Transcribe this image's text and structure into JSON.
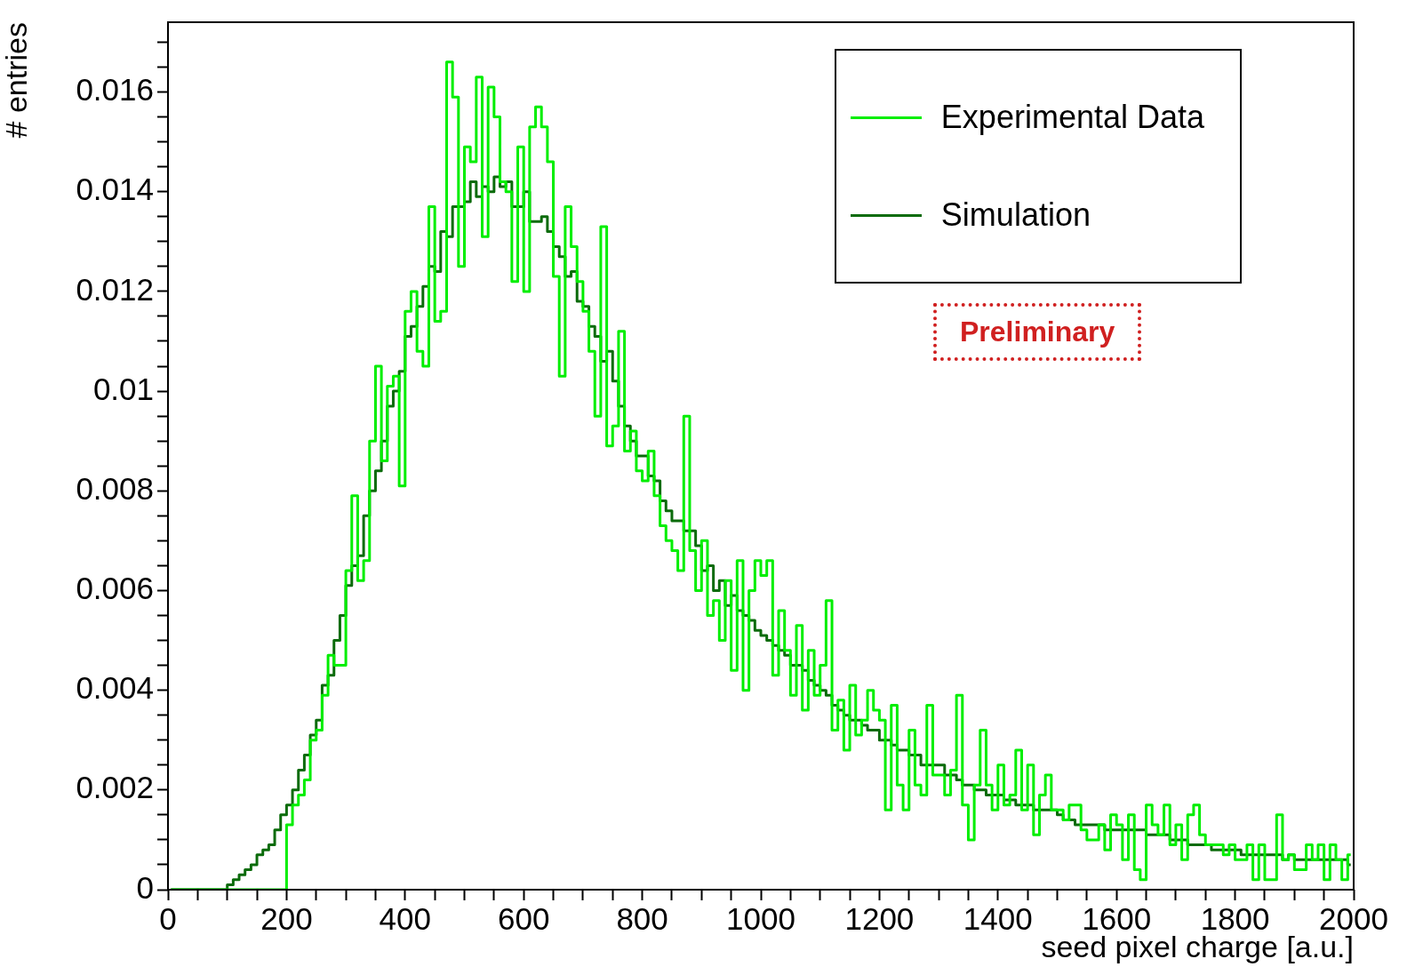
{
  "chart_data": {
    "type": "histogram",
    "xlabel": "seed pixel charge [a.u.]",
    "ylabel": "# entries",
    "annotations": [
      "Preliminary"
    ],
    "legend": "top right",
    "xlim": [
      0,
      2000
    ],
    "ylim": [
      0,
      0.0174
    ],
    "xticks": [
      0,
      {
        "value": 50,
        "label": null
      },
      {
        "value": 100,
        "label": null
      },
      {
        "value": 150,
        "label": null
      },
      200,
      {
        "value": 250,
        "label": null
      },
      {
        "value": 300,
        "label": null
      },
      {
        "value": 350,
        "label": null
      },
      400,
      {
        "value": 450,
        "label": null
      },
      {
        "value": 500,
        "label": null
      },
      {
        "value": 550,
        "label": null
      },
      600,
      {
        "value": 650,
        "label": null
      },
      {
        "value": 700,
        "label": null
      },
      {
        "value": 750,
        "label": null
      },
      800,
      {
        "value": 850,
        "label": null
      },
      {
        "value": 900,
        "label": null
      },
      {
        "value": 950,
        "label": null
      },
      1000,
      {
        "value": 1050,
        "label": null
      },
      {
        "value": 1100,
        "label": null
      },
      {
        "value": 1150,
        "label": null
      },
      1200,
      {
        "value": 1250,
        "label": null
      },
      {
        "value": 1300,
        "label": null
      },
      {
        "value": 1350,
        "label": null
      },
      1400,
      {
        "value": 1450,
        "label": null
      },
      {
        "value": 1500,
        "label": null
      },
      {
        "value": 1550,
        "label": null
      },
      1600,
      {
        "value": 1650,
        "label": null
      },
      {
        "value": 1700,
        "label": null
      },
      {
        "value": 1750,
        "label": null
      },
      1800,
      {
        "value": 1850,
        "label": null
      },
      {
        "value": 1900,
        "label": null
      },
      {
        "value": 1950,
        "label": null
      },
      2000
    ],
    "yticks": [
      0,
      {
        "value": 0.0005,
        "label": null
      },
      {
        "value": 0.001,
        "label": null
      },
      {
        "value": 0.0015,
        "label": null
      },
      0.002,
      {
        "value": 0.0025,
        "label": null
      },
      {
        "value": 0.003,
        "label": null
      },
      {
        "value": 0.0035,
        "label": null
      },
      0.004,
      {
        "value": 0.0045,
        "label": null
      },
      {
        "value": 0.005,
        "label": null
      },
      {
        "value": 0.0055,
        "label": null
      },
      0.006,
      {
        "value": 0.0065,
        "label": null
      },
      {
        "value": 0.007,
        "label": null
      },
      {
        "value": 0.0075,
        "label": null
      },
      0.008,
      {
        "value": 0.0085,
        "label": null
      },
      {
        "value": 0.009,
        "label": null
      },
      {
        "value": 0.0095,
        "label": null
      },
      0.01,
      {
        "value": 0.0105,
        "label": null
      },
      {
        "value": 0.011,
        "label": null
      },
      {
        "value": 0.0115,
        "label": null
      },
      0.012,
      {
        "value": 0.0125,
        "label": null
      },
      {
        "value": 0.013,
        "label": null
      },
      {
        "value": 0.0135,
        "label": null
      },
      0.014,
      {
        "value": 0.0145,
        "label": null
      },
      {
        "value": 0.015,
        "label": null
      },
      {
        "value": 0.0155,
        "label": null
      },
      0.016,
      {
        "value": 0.0165,
        "label": null
      },
      {
        "value": 0.017,
        "label": null
      }
    ],
    "bins": [
      0,
      10,
      20,
      30,
      40,
      50,
      60,
      70,
      80,
      90,
      100,
      110,
      120,
      130,
      140,
      150,
      160,
      170,
      180,
      190,
      200,
      210,
      220,
      230,
      240,
      250,
      260,
      270,
      280,
      290,
      300,
      310,
      320,
      330,
      340,
      350,
      360,
      370,
      380,
      390,
      400,
      410,
      420,
      430,
      440,
      450,
      460,
      470,
      480,
      490,
      500,
      510,
      520,
      530,
      540,
      550,
      560,
      570,
      580,
      590,
      600,
      610,
      620,
      630,
      640,
      650,
      660,
      670,
      680,
      690,
      700,
      710,
      720,
      730,
      740,
      750,
      760,
      770,
      780,
      790,
      800,
      810,
      820,
      830,
      840,
      850,
      860,
      870,
      880,
      890,
      900,
      910,
      920,
      930,
      940,
      950,
      960,
      970,
      980,
      990,
      1000,
      1010,
      1020,
      1030,
      1040,
      1050,
      1060,
      1070,
      1080,
      1090,
      1100,
      1110,
      1120,
      1130,
      1140,
      1150,
      1160,
      1170,
      1180,
      1190,
      1200,
      1210,
      1220,
      1230,
      1240,
      1250,
      1260,
      1270,
      1280,
      1290,
      1300,
      1310,
      1320,
      1330,
      1340,
      1350,
      1360,
      1370,
      1380,
      1390,
      1400,
      1410,
      1420,
      1430,
      1440,
      1450,
      1460,
      1470,
      1480,
      1490,
      1500,
      1510,
      1520,
      1530,
      1540,
      1550,
      1560,
      1570,
      1580,
      1590,
      1600,
      1610,
      1620,
      1630,
      1640,
      1650,
      1660,
      1670,
      1680,
      1690,
      1700,
      1710,
      1720,
      1730,
      1740,
      1750,
      1760,
      1770,
      1780,
      1790,
      1800,
      1810,
      1820,
      1830,
      1840,
      1850,
      1860,
      1870,
      1880,
      1890,
      1900,
      1910,
      1920,
      1930,
      1940,
      1950,
      1960,
      1970,
      1980,
      1990,
      2000
    ],
    "series": [
      {
        "name": "Experimental Data",
        "color": "#00ee00",
        "values": [
          0,
          0,
          0,
          0,
          0,
          0,
          0,
          0,
          0,
          0,
          0,
          0,
          0,
          0,
          0,
          0,
          0,
          0,
          0,
          0,
          0.0013,
          0.0017,
          0.0019,
          0.0022,
          0.003,
          0.0032,
          0.0039,
          0.0047,
          0.0045,
          0.0045,
          0.0064,
          0.0079,
          0.0062,
          0.0066,
          0.009,
          0.0105,
          0.0086,
          0.0101,
          0.0103,
          0.0081,
          0.0116,
          0.012,
          0.0108,
          0.0105,
          0.0137,
          0.0114,
          0.0116,
          0.0166,
          0.0159,
          0.0125,
          0.0149,
          0.0146,
          0.0163,
          0.0131,
          0.0161,
          0.0155,
          0.0142,
          0.014,
          0.0122,
          0.0149,
          0.012,
          0.0153,
          0.0157,
          0.0153,
          0.0146,
          0.0123,
          0.0103,
          0.0137,
          0.0129,
          0.0122,
          0.0116,
          0.0108,
          0.0095,
          0.0133,
          0.0089,
          0.0093,
          0.0112,
          0.0088,
          0.0092,
          0.0084,
          0.0082,
          0.0088,
          0.0079,
          0.0073,
          0.007,
          0.0068,
          0.0064,
          0.0095,
          0.0068,
          0.006,
          0.007,
          0.0055,
          0.0058,
          0.005,
          0.0062,
          0.0044,
          0.0066,
          0.004,
          0.006,
          0.0066,
          0.0063,
          0.0066,
          0.0043,
          0.0056,
          0.0048,
          0.0039,
          0.0053,
          0.0036,
          0.0048,
          0.0039,
          0.0045,
          0.0058,
          0.0032,
          0.0038,
          0.0028,
          0.0041,
          0.0031,
          0.0034,
          0.004,
          0.0036,
          0.0034,
          0.0016,
          0.0037,
          0.0021,
          0.0016,
          0.0032,
          0.0021,
          0.0019,
          0.0037,
          0.0023,
          0.0023,
          0.0019,
          0.0024,
          0.0039,
          0.0017,
          0.001,
          0.0021,
          0.0032,
          0.0021,
          0.0016,
          0.0025,
          0.0017,
          0.0019,
          0.0028,
          0.0016,
          0.0025,
          0.0011,
          0.0019,
          0.0023,
          0.0016,
          0.0016,
          0.0014,
          0.0017,
          0.0017,
          0.0012,
          0.001,
          0.001,
          0.0013,
          0.0008,
          0.0015,
          0.0013,
          0.0006,
          0.0015,
          0.0004,
          0.0002,
          0.0017,
          0.0013,
          0.0011,
          0.0017,
          0.0009,
          0.0013,
          0.0006,
          0.0015,
          0.0017,
          0.0011,
          0.0009,
          0.0009,
          0.0009,
          0.0007,
          0.0009,
          0.0006,
          0.0006,
          0.0009,
          0.0002,
          0.0009,
          0.0002,
          0.0002,
          0.0015,
          0.0006,
          0.0007,
          0.0004,
          0.0004,
          0.0009,
          0.0006,
          0.0009,
          0.0002,
          0.0009,
          0.0006,
          0.0002,
          0.0007
        ]
      },
      {
        "name": "Simulation",
        "color": "#0b6b0b",
        "values": [
          0,
          0,
          0,
          0,
          0,
          0,
          0,
          0,
          0,
          0,
          0.0001,
          0.0002,
          0.0003,
          0.0004,
          0.0005,
          0.0007,
          0.0008,
          0.0009,
          0.0012,
          0.0015,
          0.0017,
          0.002,
          0.0024,
          0.0027,
          0.0031,
          0.0034,
          0.0041,
          0.0043,
          0.005,
          0.0055,
          0.0061,
          0.0065,
          0.0067,
          0.0075,
          0.008,
          0.0084,
          0.009,
          0.0097,
          0.01,
          0.0104,
          0.0111,
          0.0113,
          0.0117,
          0.0121,
          0.0125,
          0.0124,
          0.0132,
          0.0131,
          0.0137,
          0.0137,
          0.0138,
          0.0142,
          0.0139,
          0.0141,
          0.014,
          0.0143,
          0.0141,
          0.0142,
          0.0137,
          0.0137,
          0.014,
          0.0134,
          0.0134,
          0.0135,
          0.0132,
          0.0129,
          0.0127,
          0.0123,
          0.0124,
          0.0118,
          0.0117,
          0.0113,
          0.0111,
          0.0106,
          0.0108,
          0.0102,
          0.0097,
          0.0093,
          0.009,
          0.0087,
          0.0087,
          0.0083,
          0.0082,
          0.0078,
          0.0076,
          0.0074,
          0.0074,
          0.0072,
          0.0072,
          0.0069,
          0.0064,
          0.0065,
          0.006,
          0.0062,
          0.0057,
          0.0059,
          0.0056,
          0.0055,
          0.0054,
          0.0052,
          0.0051,
          0.005,
          0.0049,
          0.0048,
          0.0047,
          0.0045,
          0.0045,
          0.0044,
          0.0042,
          0.0041,
          0.004,
          0.0039,
          0.0037,
          0.0036,
          0.0035,
          0.0034,
          0.0034,
          0.0033,
          0.0032,
          0.0032,
          0.003,
          0.003,
          0.0029,
          0.0028,
          0.0028,
          0.0027,
          0.0027,
          0.0025,
          0.0025,
          0.0025,
          0.0025,
          0.0023,
          0.0023,
          0.0022,
          0.0021,
          0.0021,
          0.002,
          0.002,
          0.0019,
          0.0019,
          0.0019,
          0.0018,
          0.0018,
          0.0017,
          0.0017,
          0.0017,
          0.0016,
          0.0016,
          0.0016,
          0.0016,
          0.0015,
          0.0014,
          0.0014,
          0.0013,
          0.0013,
          0.0013,
          0.0013,
          0.0013,
          0.0012,
          0.0012,
          0.0012,
          0.0012,
          0.0012,
          0.0012,
          0.0012,
          0.0011,
          0.0011,
          0.0011,
          0.0011,
          0.001,
          0.001,
          0.001,
          0.0009,
          0.0009,
          0.0009,
          0.0009,
          0.0008,
          0.0008,
          0.0008,
          0.0008,
          0.0008,
          0.0007,
          0.0007,
          0.0007,
          0.0007,
          0.0007,
          0.0007,
          0.0007,
          0.0006,
          0.0007,
          0.0006,
          0.0006,
          0.0006,
          0.0006,
          0.0006,
          0.0006,
          0.0006,
          0.0006,
          0.0006,
          0.0005
        ]
      }
    ]
  }
}
